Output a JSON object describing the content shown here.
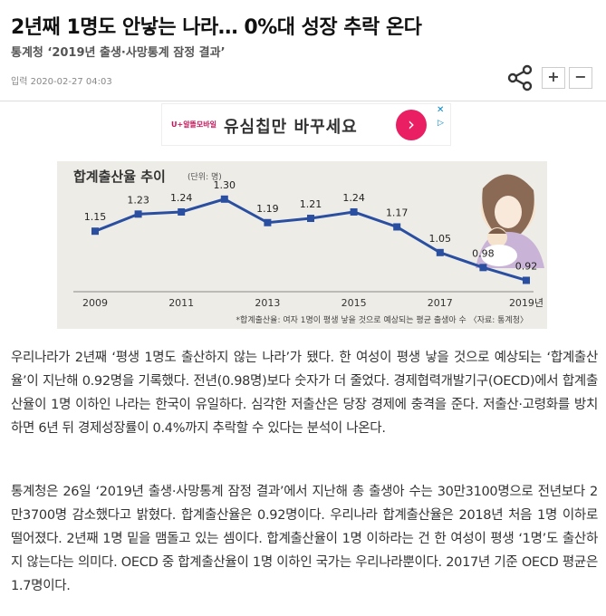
{
  "article": {
    "headline": "2년째 1명도 안낳는 나라… 0%대 성장 추락 온다",
    "subhead": "통계청 ‘2019년 출생·사망통계 잠정 결과’",
    "date": "입력 2020-02-27 04:03",
    "font_plus": "+",
    "font_minus": "−",
    "paragraphs": [
      "우리나라가 2년째 ‘평생 1명도 출산하지 않는 나라’가 됐다. 한 여성이 평생 낳을 것으로 예상되는 ‘합계출산율’이 지난해 0.92명을 기록했다. 전년(0.98명)보다 숫자가 더 줄었다. 경제협력개발기구(OECD)에서 합계출산율이 1명 이하인 나라는 한국이 유일하다. 심각한 저출산은 당장 경제에 충격을 준다. 저출산·고령화를 방치하면 6년 뒤 경제성장률이 0.4%까지 추락할 수 있다는 분석이 나온다.",
      "통계청은 26일 ‘2019년 출생·사망통계 잠정 결과’에서 지난해 총 출생아 수는 30만3100명으로 전년보다 2만3700명 감소했다고 밝혔다. 합계출산율은 0.92명이다. 우리나라 합계출산율은 2018년 처음 1명 이하로 떨어졌다. 2년째 1명 밑을 맴돌고 있는 셈이다. 합계출산율이 1명 이하라는 건 한 여성이 평생 ‘1명’도 출산하지 않는다는 의미다. OECD 중 합계출산율이 1명 이하인 국가는 우리나라뿐이다. 2017년 기준 OECD 평균은 1.7명이다."
    ]
  },
  "ad": {
    "logo": "U+알뜰모바일",
    "text": "유심칩만 바꾸세요",
    "arrow": "›",
    "close": "✕",
    "info": "▷"
  },
  "icons": {
    "share": "share-icon",
    "illustration": "mother-child-illustration"
  },
  "colors": {
    "line": "#2a4fa1",
    "chart_bg": "#eeece6",
    "ad_accent": "#e91e63"
  },
  "chart_data": {
    "type": "line",
    "title": "합계출산율 추이",
    "unit": "(단위: 명)",
    "x": [
      2009,
      2010,
      2011,
      2012,
      2013,
      2014,
      2015,
      2016,
      2017,
      2018,
      2019
    ],
    "values": [
      1.15,
      1.23,
      1.24,
      1.3,
      1.19,
      1.21,
      1.24,
      1.17,
      1.05,
      0.98,
      0.92
    ],
    "value_labels": [
      "1.15",
      "1.23",
      "1.24",
      "1.30",
      "1.19",
      "1.21",
      "1.24",
      "1.17",
      "1.05",
      "0.98",
      "0.92"
    ],
    "tick_labels": [
      "2009",
      "2011",
      "2013",
      "2015",
      "2017",
      "2019년"
    ],
    "tick_years": [
      2009,
      2011,
      2013,
      2015,
      2017,
      2019
    ],
    "footnote": "*합계출산율: 여자 1명이 평생 낳을 것으로 예상되는 평균 출생아 수 〈자료: 통계청〉",
    "ylim": [
      0.85,
      1.35
    ],
    "grid": false,
    "legend": "none"
  }
}
